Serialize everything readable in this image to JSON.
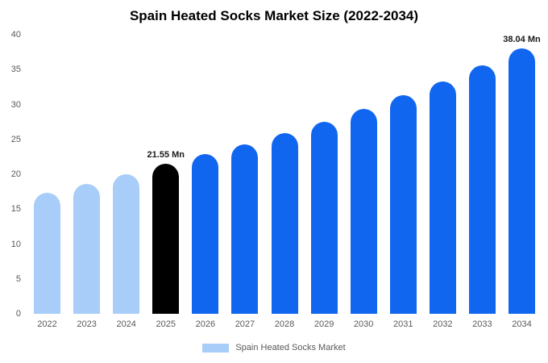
{
  "chart_data": {
    "type": "bar",
    "title": "Spain Heated Socks Market Size (2022-2034)",
    "categories": [
      "2022",
      "2023",
      "2024",
      "2025",
      "2026",
      "2027",
      "2028",
      "2029",
      "2030",
      "2031",
      "2032",
      "2033",
      "2034"
    ],
    "values": [
      17.4,
      18.6,
      20.0,
      21.55,
      22.9,
      24.3,
      25.9,
      27.5,
      29.4,
      31.3,
      33.3,
      35.6,
      38.04
    ],
    "bar_colors": [
      "#a7cdf8",
      "#a7cdf8",
      "#a7cdf8",
      "#000000",
      "#1166f0",
      "#1166f0",
      "#1166f0",
      "#1166f0",
      "#1166f0",
      "#1166f0",
      "#1166f0",
      "#1166f0",
      "#1166f0"
    ],
    "annotations": [
      {
        "index": 3,
        "text": "21.55 Mn"
      },
      {
        "index": 12,
        "text": "38.04 Mn"
      }
    ],
    "xlabel": "",
    "ylabel": "",
    "ylim": [
      0,
      40
    ],
    "yticks": [
      0,
      5,
      10,
      15,
      20,
      25,
      30,
      35,
      40
    ],
    "grid": false,
    "legend": {
      "position": "bottom",
      "label": "Spain Heated Socks Market",
      "color": "#a7cdf8"
    },
    "unit": "Mn"
  }
}
